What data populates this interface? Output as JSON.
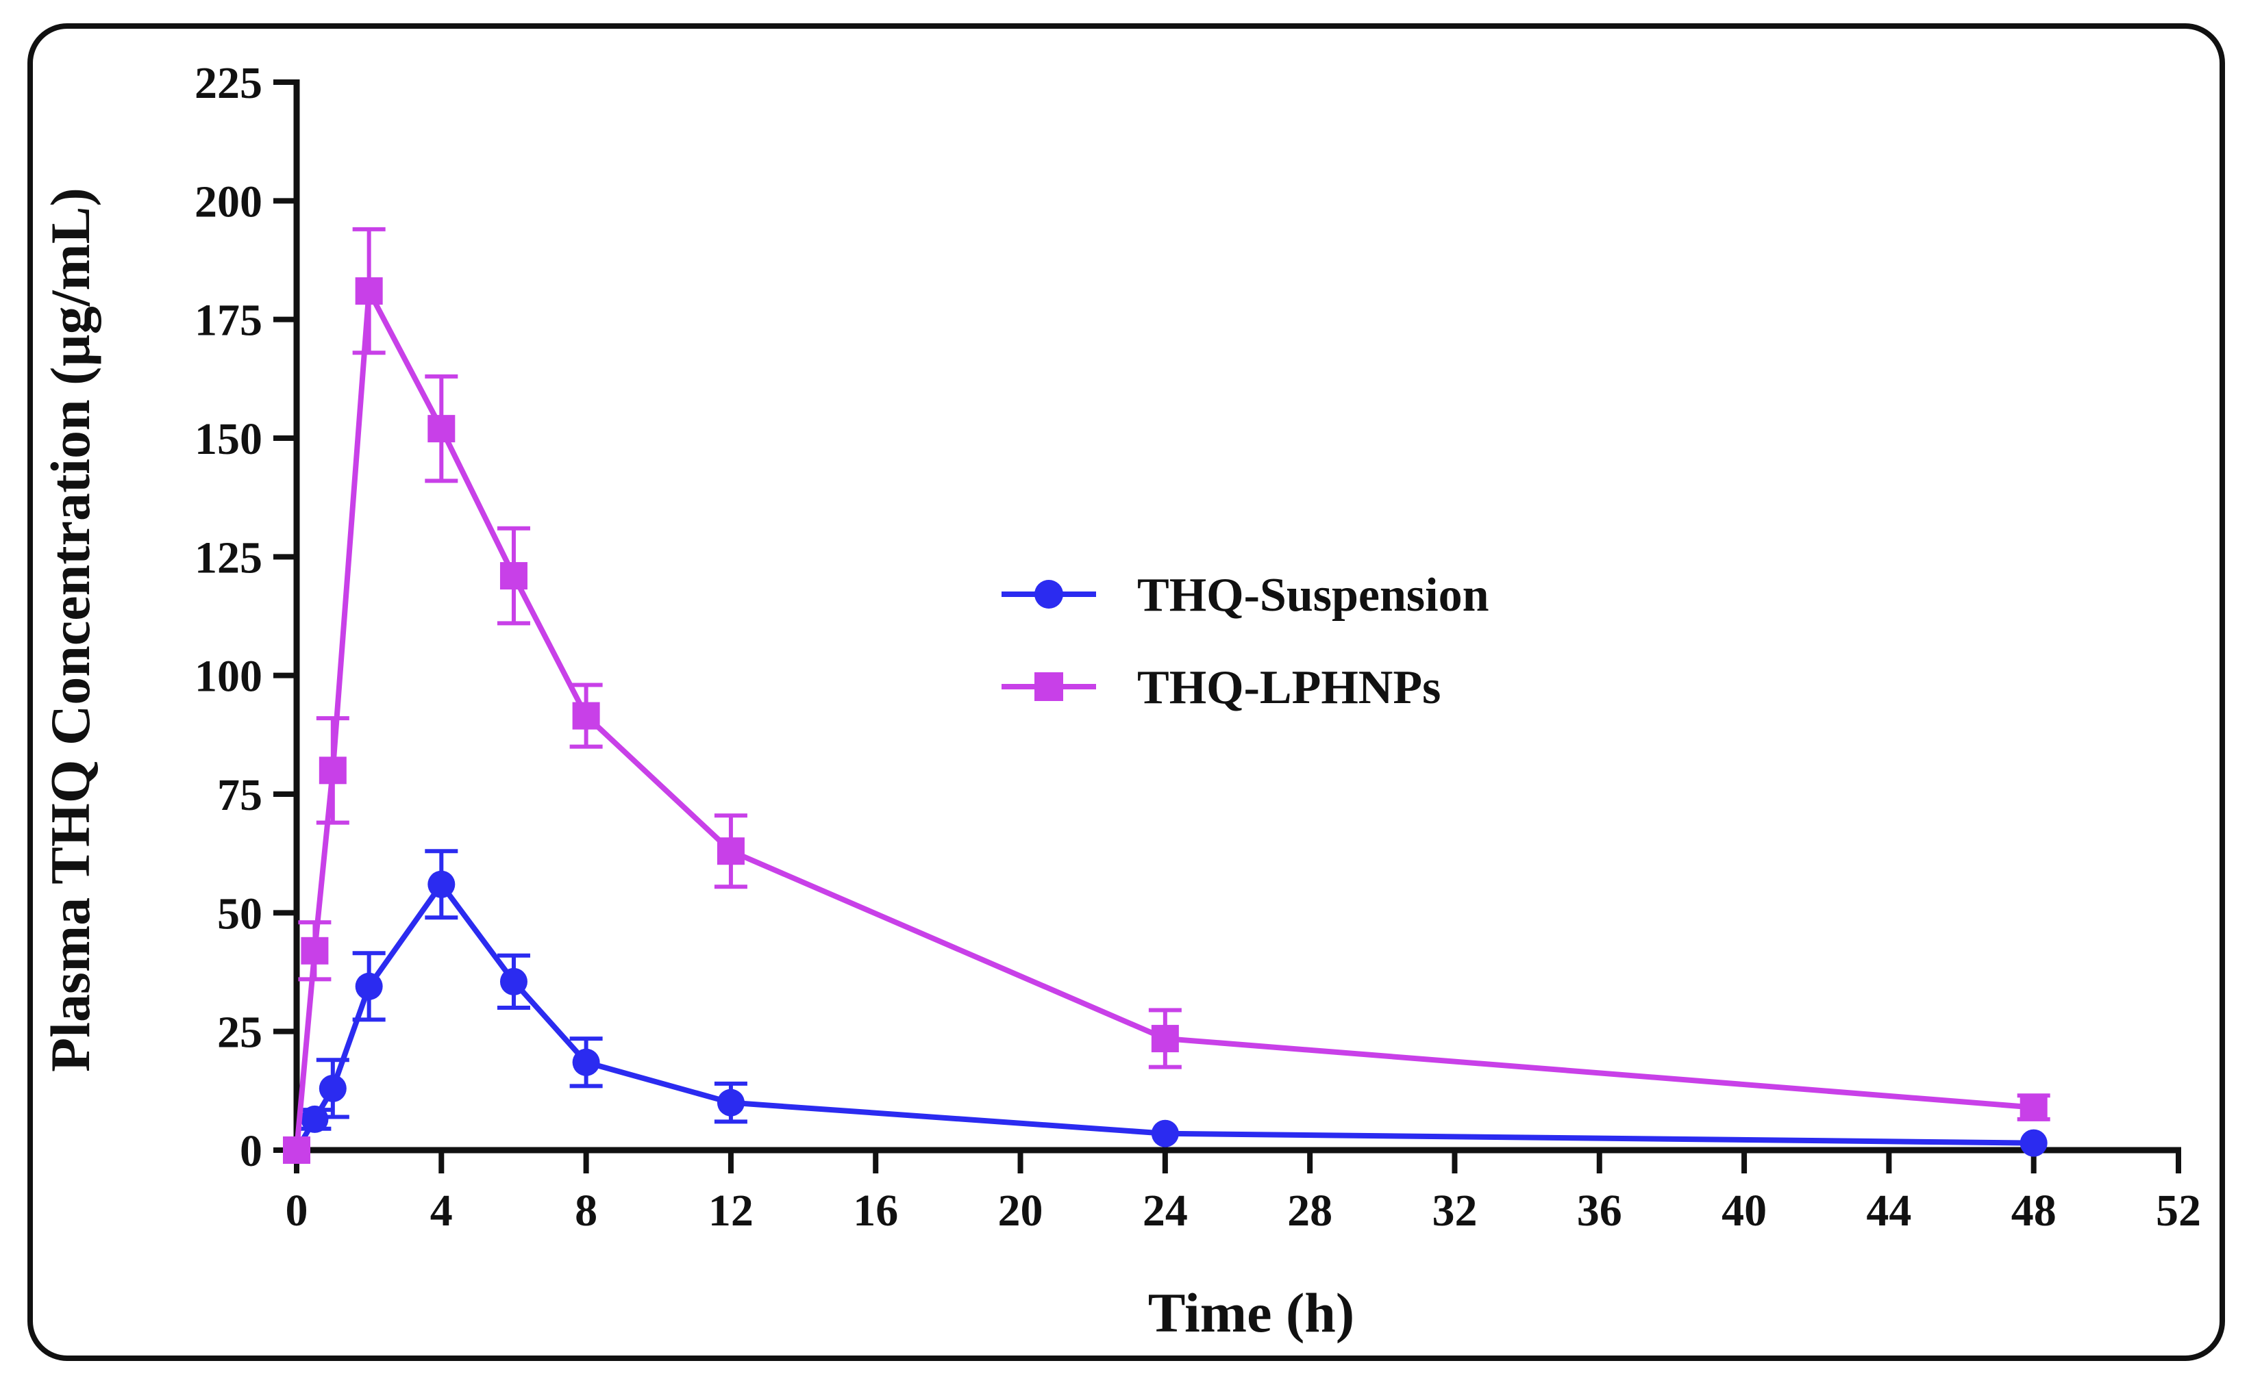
{
  "chart_data": {
    "type": "line",
    "title": "",
    "xlabel": "Time (h)",
    "ylabel": "Plasma THQ Concentration (µg/mL)",
    "xlim": [
      0,
      52
    ],
    "ylim": [
      0,
      225
    ],
    "xticks": [
      "0",
      "4",
      "8",
      "12",
      "16",
      "20",
      "24",
      "28",
      "32",
      "36",
      "40",
      "44",
      "48",
      "52"
    ],
    "yticks": [
      "0",
      "25",
      "50",
      "75",
      "100",
      "125",
      "150",
      "175",
      "200",
      "225"
    ],
    "legend_position": "center-right",
    "grid": false,
    "series": [
      {
        "name": "THQ-Suspension",
        "marker": "circle",
        "color": "#2b2bf0",
        "x": [
          0,
          0.5,
          1,
          2,
          4,
          6,
          8,
          12,
          24,
          48
        ],
        "y": [
          0,
          6.5,
          13,
          34.5,
          56,
          35.5,
          18.5,
          10,
          3.5,
          1.5
        ],
        "err": [
          0,
          2,
          6,
          7,
          7,
          5.5,
          5,
          4,
          0,
          0
        ]
      },
      {
        "name": "THQ-LPHNPs",
        "marker": "square",
        "color": "#c840e8",
        "x": [
          0,
          0.5,
          1,
          2,
          4,
          6,
          8,
          12,
          24,
          48
        ],
        "y": [
          0,
          42,
          80,
          181,
          152,
          121,
          91.5,
          63,
          23.5,
          9
        ],
        "err": [
          0,
          6,
          11,
          13,
          11,
          10,
          6.5,
          7.5,
          6,
          2.5
        ]
      }
    ]
  }
}
